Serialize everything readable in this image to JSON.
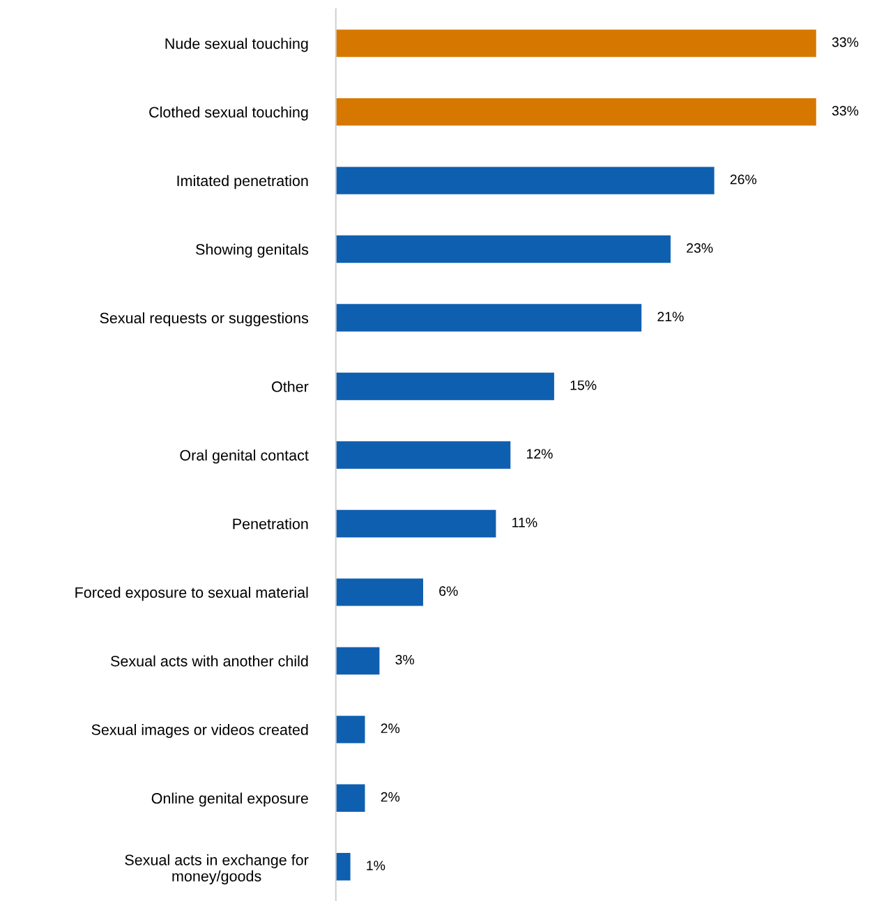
{
  "chart_data": {
    "type": "bar",
    "orientation": "horizontal",
    "categories": [
      "Nude sexual touching",
      "Clothed sexual touching",
      "Imitated penetration",
      "Showing genitals",
      "Sexual requests or suggestions",
      "Other",
      "Oral genital contact",
      "Penetration",
      "Forced exposure to sexual material",
      "Sexual acts with another child",
      "Sexual images or videos created",
      "Online genital exposure",
      "Sexual acts in exchange for\nmoney/goods"
    ],
    "values": [
      33,
      33,
      26,
      23,
      21,
      15,
      12,
      11,
      6,
      3,
      2,
      2,
      1
    ],
    "value_labels": [
      "33%",
      "33%",
      "26%",
      "23%",
      "21%",
      "15%",
      "12%",
      "11%",
      "6%",
      "3%",
      "2%",
      "2%",
      "1%"
    ],
    "colors": [
      "#d67800",
      "#d67800",
      "#0f5fb0",
      "#0f5fb0",
      "#0f5fb0",
      "#0f5fb0",
      "#0f5fb0",
      "#0f5fb0",
      "#0f5fb0",
      "#0f5fb0",
      "#0f5fb0",
      "#0f5fb0",
      "#0f5fb0"
    ]
  }
}
